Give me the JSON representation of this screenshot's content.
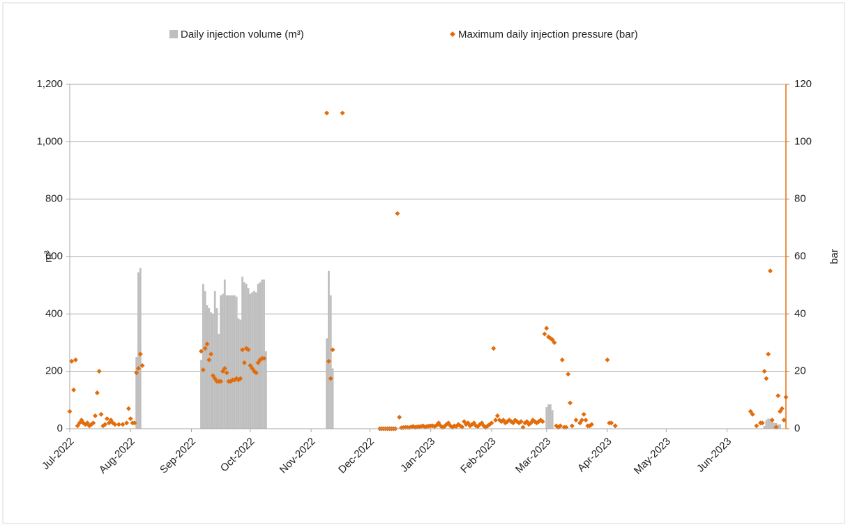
{
  "chart_data": {
    "type": "bar",
    "legend": "top",
    "grid": true,
    "xlim": [
      0,
      365
    ],
    "xticks": [
      {
        "value": 0,
        "label": "Jul-2022"
      },
      {
        "value": 31,
        "label": "Aug-2022"
      },
      {
        "value": 62,
        "label": "Sep-2022"
      },
      {
        "value": 92,
        "label": "Oct-2022"
      },
      {
        "value": 123,
        "label": "Nov-2022"
      },
      {
        "value": 153,
        "label": "Dec-2022"
      },
      {
        "value": 184,
        "label": "Jan-2023"
      },
      {
        "value": 215,
        "label": "Feb-2023"
      },
      {
        "value": 243,
        "label": "Mar-2023"
      },
      {
        "value": 274,
        "label": "Apr-2023"
      },
      {
        "value": 304,
        "label": "May-2023"
      },
      {
        "value": 335,
        "label": "Jun-2023"
      }
    ],
    "ylabel": "m³",
    "ylim": [
      0,
      1200
    ],
    "yticks": [
      0,
      200,
      400,
      600,
      800,
      {
        "value": 1000,
        "label": "1,000"
      },
      {
        "value": 1200,
        "label": "1,200"
      }
    ],
    "y2label": "bar",
    "y2lim": [
      0,
      120
    ],
    "y2ticks": [
      0,
      20,
      40,
      60,
      80,
      100,
      120
    ],
    "series": [
      {
        "name": "Daily injection volume (m³)",
        "type": "bar",
        "axis": "y",
        "color": "#bfbfbf",
        "x": [
          34,
          35,
          36,
          67,
          68,
          69,
          70,
          71,
          72,
          73,
          74,
          75,
          76,
          77,
          78,
          79,
          80,
          81,
          82,
          83,
          84,
          85,
          86,
          87,
          88,
          89,
          90,
          91,
          92,
          93,
          94,
          95,
          96,
          97,
          98,
          99,
          100,
          131,
          132,
          133,
          134,
          243,
          244,
          245,
          246,
          354,
          355,
          356,
          357,
          358,
          359,
          360,
          361,
          362
        ],
        "values": [
          250,
          545,
          560,
          240,
          505,
          480,
          430,
          420,
          405,
          400,
          480,
          420,
          330,
          465,
          470,
          520,
          465,
          465,
          465,
          465,
          465,
          460,
          385,
          380,
          530,
          510,
          505,
          490,
          470,
          475,
          480,
          475,
          505,
          510,
          520,
          520,
          270,
          315,
          550,
          465,
          210,
          75,
          85,
          85,
          65,
          10,
          30,
          35,
          35,
          35,
          20,
          20,
          15,
          15
        ]
      },
      {
        "name": "Maximum daily injection pressure (bar)",
        "type": "scatter",
        "axis": "y2",
        "color": "#e36c0a",
        "x": [
          0,
          1,
          2,
          3,
          4,
          5,
          6,
          7,
          8,
          9,
          10,
          11,
          12,
          13,
          14,
          15,
          16,
          17,
          18,
          19,
          20,
          21,
          22,
          23,
          25,
          27,
          29,
          30,
          31,
          32,
          33,
          34,
          35,
          36,
          37,
          67,
          68,
          69,
          70,
          71,
          72,
          73,
          74,
          75,
          76,
          77,
          78,
          79,
          80,
          81,
          82,
          83,
          84,
          85,
          86,
          87,
          88,
          89,
          90,
          91,
          92,
          93,
          94,
          95,
          96,
          97,
          98,
          99,
          131,
          132,
          133,
          134,
          139,
          158,
          159,
          160,
          161,
          162,
          163,
          164,
          165,
          166,
          167,
          168,
          169,
          170,
          171,
          172,
          173,
          174,
          175,
          176,
          177,
          178,
          179,
          180,
          181,
          182,
          183,
          184,
          185,
          186,
          187,
          188,
          189,
          190,
          191,
          192,
          193,
          194,
          195,
          196,
          197,
          198,
          199,
          200,
          201,
          202,
          203,
          204,
          205,
          206,
          207,
          208,
          209,
          210,
          211,
          212,
          213,
          214,
          215,
          216,
          217,
          218,
          219,
          220,
          221,
          222,
          223,
          224,
          225,
          226,
          227,
          228,
          229,
          230,
          231,
          232,
          233,
          234,
          235,
          236,
          237,
          238,
          239,
          240,
          241,
          242,
          243,
          244,
          245,
          246,
          247,
          248,
          249,
          250,
          251,
          252,
          253,
          254,
          255,
          256,
          258,
          260,
          261,
          262,
          263,
          264,
          265,
          266,
          274,
          275,
          276,
          278,
          347,
          348,
          350,
          352,
          353,
          354,
          355,
          356,
          357,
          358,
          360,
          361,
          362,
          363,
          364,
          365
        ],
        "values": [
          6,
          23.5,
          13.5,
          24,
          1,
          2,
          3,
          2,
          1.5,
          2,
          1,
          1.5,
          2,
          4.5,
          12.5,
          20,
          5,
          1,
          1.5,
          3.5,
          2,
          3,
          2,
          1.5,
          1.5,
          1.5,
          2,
          7,
          3.5,
          2,
          2,
          19.5,
          21,
          26,
          22,
          27,
          20.5,
          28,
          29.5,
          24,
          26,
          18.5,
          17.5,
          16.5,
          16.5,
          16.5,
          20,
          21,
          19.5,
          16.5,
          16.5,
          17,
          17,
          17.5,
          17,
          17.5,
          27.5,
          23,
          28,
          27.5,
          22,
          21,
          20,
          19.5,
          23,
          24,
          24.5,
          24.5,
          110,
          23.5,
          17.5,
          27.5,
          110,
          0,
          0,
          0,
          0,
          0,
          0,
          0,
          0,
          0,
          75,
          4,
          0.3,
          0.4,
          0.5,
          0.5,
          0.4,
          0.6,
          0.8,
          0.5,
          0.6,
          0.7,
          0.8,
          1,
          0.6,
          0.8,
          0.9,
          1,
          1,
          0.8,
          1.2,
          2,
          1,
          0.5,
          0.8,
          1.5,
          2,
          1,
          0.5,
          1,
          0.8,
          1.5,
          1,
          0.6,
          2.5,
          1.5,
          2,
          1,
          1.5,
          2,
          1,
          0.8,
          1.5,
          2,
          1,
          0.5,
          1,
          1.5,
          2,
          28,
          3,
          4.5,
          3,
          2.5,
          3,
          2,
          2.5,
          3,
          2.5,
          2,
          3,
          2.5,
          2,
          2.5,
          0.5,
          2,
          2.5,
          1.5,
          2,
          3,
          2.5,
          2,
          2.5,
          3,
          2.5,
          33,
          35,
          32,
          31.5,
          31,
          30,
          1,
          0.5,
          1,
          24,
          0.5,
          0.5,
          19,
          9,
          1,
          3,
          2,
          3,
          5,
          3,
          1,
          1,
          1.5,
          24,
          2,
          2,
          1,
          6,
          5,
          1,
          2,
          2,
          20,
          17.5,
          26,
          55,
          3,
          0.5,
          11.5,
          6,
          7,
          3,
          11
        ]
      }
    ]
  }
}
